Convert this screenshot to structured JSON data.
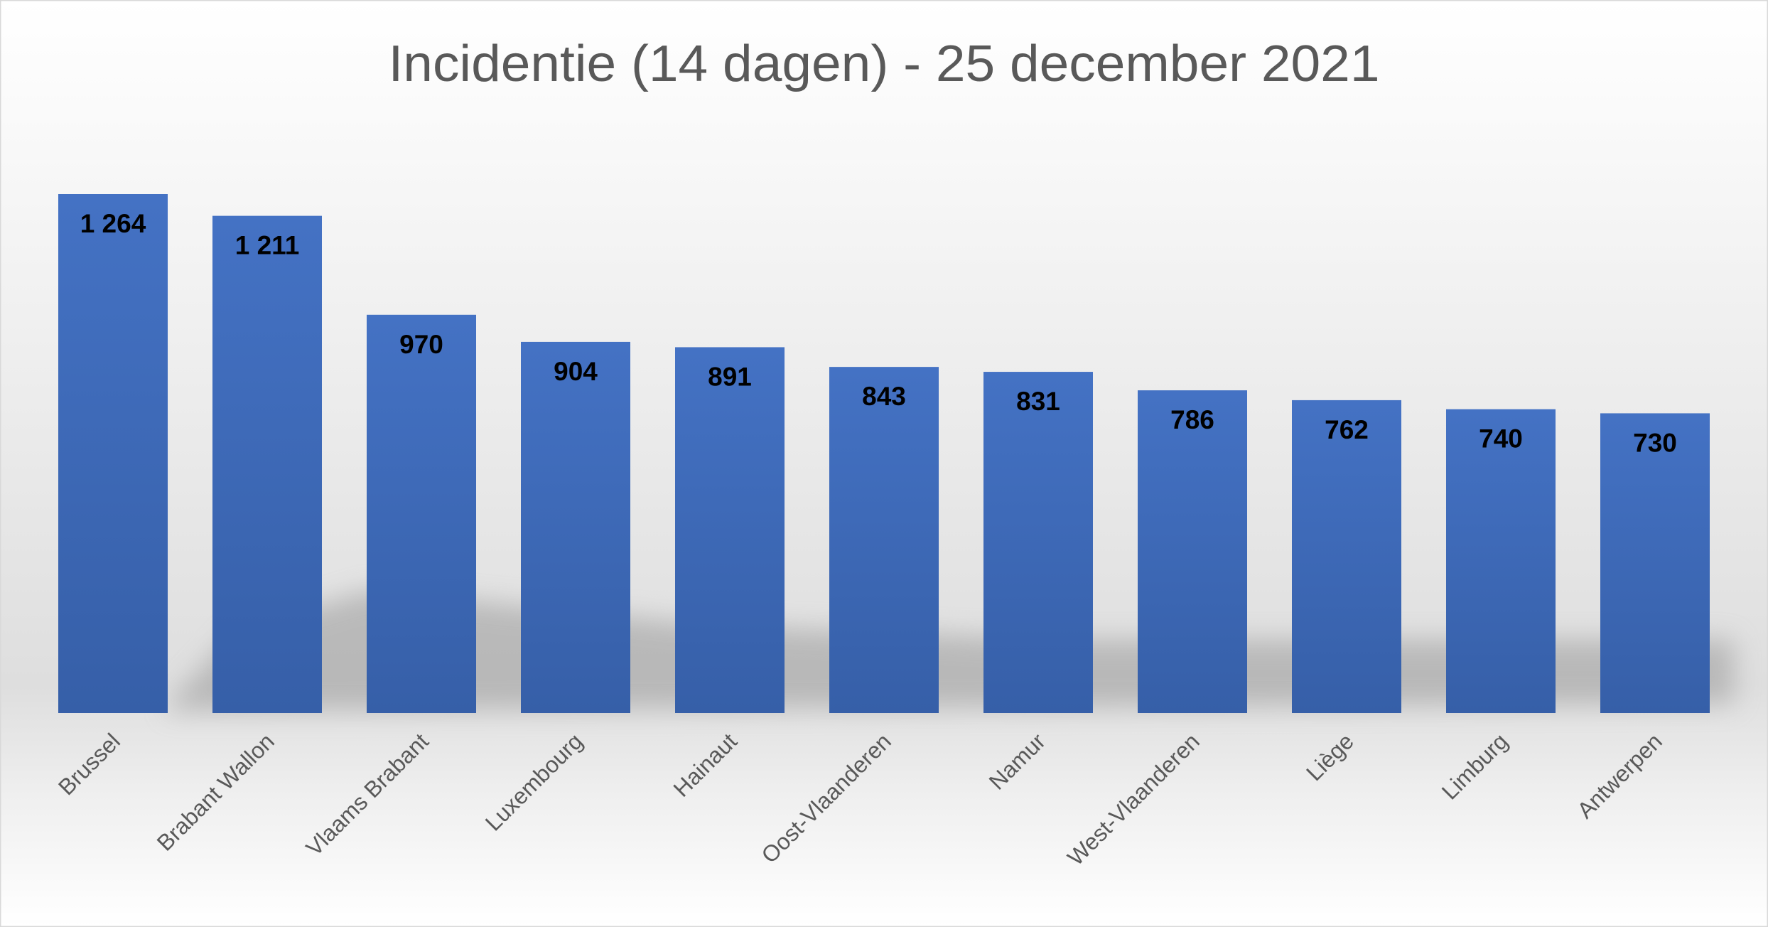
{
  "chart_data": {
    "type": "bar",
    "title": "Incidentie (14 dagen) - 25 december 2021",
    "xlabel": "",
    "ylabel": "",
    "categories": [
      "Brussel",
      "Brabant Wallon",
      "Vlaams Brabant",
      "Luxembourg",
      "Hainaut",
      "Oost-Vlaanderen",
      "Namur",
      "West-Vlaanderen",
      "Liège",
      "Limburg",
      "Antwerpen"
    ],
    "values": [
      1264,
      1211,
      970,
      904,
      891,
      843,
      831,
      786,
      762,
      740,
      730
    ],
    "value_labels": [
      "1 264",
      "1 211",
      "970",
      "904",
      "891",
      "843",
      "831",
      "786",
      "762",
      "740",
      "730"
    ],
    "ylim": [
      0,
      1264
    ],
    "grid": false,
    "legend": "none",
    "colors": {
      "bar_top": "#4472C4",
      "bar_bottom": "#365FA8",
      "text": "#595959"
    }
  }
}
